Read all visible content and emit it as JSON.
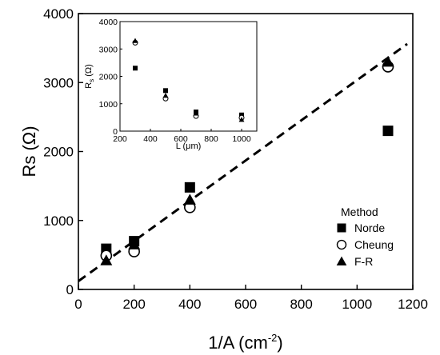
{
  "chart_data": [
    {
      "type": "scatter",
      "xlabel": "1/A (cm",
      "xlabel_sup": "-2",
      "xlabel_close": ")",
      "ylabel": "Rs (Ω)",
      "xlim": [
        0,
        1200
      ],
      "ylim": [
        0,
        4000
      ],
      "xticks": [
        0,
        200,
        400,
        600,
        800,
        1000,
        1200
      ],
      "yticks": [
        0,
        1000,
        2000,
        3000,
        4000
      ],
      "legend_title": "Method",
      "legend_position": "bottom-right",
      "series": [
        {
          "name": "Norde",
          "marker": "filled-square",
          "x": [
            100,
            200,
            400,
            1111
          ],
          "y": [
            590,
            700,
            1480,
            2300
          ]
        },
        {
          "name": "Cheung",
          "marker": "open-circle",
          "x": [
            100,
            200,
            400,
            1111
          ],
          "y": [
            490,
            550,
            1190,
            3230
          ]
        },
        {
          "name": "F-R",
          "marker": "filled-triangle",
          "x": [
            100,
            200,
            400,
            1111
          ],
          "y": [
            420,
            650,
            1300,
            3300
          ]
        }
      ],
      "fit_line": {
        "style": "dashed",
        "x": [
          0,
          1180
        ],
        "y": [
          120,
          3560
        ]
      }
    },
    {
      "type": "scatter",
      "xlabel": "L (μm)",
      "ylabel": "R",
      "ylabel_sub": "s",
      "ylabel_unit": "(Ω)",
      "xlim": [
        200,
        1100
      ],
      "ylim": [
        0,
        4000
      ],
      "xticks": [
        200,
        400,
        600,
        800,
        1000
      ],
      "yticks": [
        0,
        1000,
        2000,
        3000,
        4000
      ],
      "series": [
        {
          "marker": "filled-square",
          "x": [
            300,
            500,
            700,
            1000
          ],
          "y": [
            2300,
            1480,
            700,
            590
          ]
        },
        {
          "marker": "open-circle",
          "x": [
            300,
            500,
            700,
            1000
          ],
          "y": [
            3230,
            1190,
            550,
            490
          ]
        },
        {
          "marker": "filled-triangle",
          "x": [
            300,
            500,
            700,
            1000
          ],
          "y": [
            3300,
            1300,
            650,
            420
          ]
        }
      ]
    }
  ]
}
